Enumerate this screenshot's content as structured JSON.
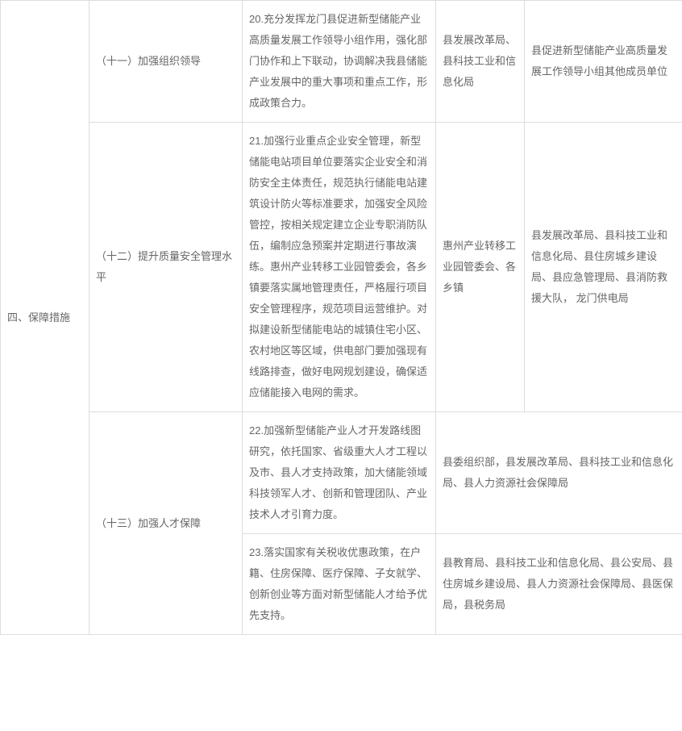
{
  "table": {
    "section": "四、保障措施",
    "rows": [
      {
        "sub": "（十一）加强组织领导",
        "task": "20.充分发挥龙门县促进新型储能产业高质量发展工作领导小组作用，强化部门协作和上下联动，协调解决我县储能产业发展中的重大事项和重点工作，形成政策合力。",
        "lead": "县发展改革局、县科技工业和信息化局",
        "coop": "县促进新型储能产业高质量发展工作领导小组其他成员单位"
      },
      {
        "sub": "（十二）提升质量安全管理水平",
        "task": "21.加强行业重点企业安全管理，新型储能电站项目单位要落实企业安全和消防安全主体责任，规范执行储能电站建筑设计防火等标准要求，加强安全风险管控，按相关规定建立企业专职消防队伍，编制应急预案并定期进行事故演练。惠州产业转移工业园管委会，各乡镇要落实属地管理责任，严格履行项目安全管理程序，规范项目运营维护。对拟建设新型储能电站的城镇住宅小区、农村地区等区域，供电部门要加强现有线路排查，做好电网规划建设，确保适应储能接入电网的需求。",
        "lead": "惠州产业转移工业园管委会、各乡镇",
        "coop": "县发展改革局、县科技工业和信息化局、县住房城乡建设局、县应急管理局、县消防救援大队， 龙门供电局"
      },
      {
        "sub": "（十三）加强人才保障",
        "task": "22.加强新型储能产业人才开发路线图研究，依托国家、省级重大人才工程以及市、县人才支持政策，加大储能领域科技领军人才、创新和管理团队、产业技术人才引育力度。",
        "merged": "县委组织部，县发展改革局、县科技工业和信息化局、县人力资源社会保障局"
      },
      {
        "task": "23.落实国家有关税收优惠政策，在户籍、住房保障、医疗保障、子女就学、创新创业等方面对新型储能人才给予优先支持。",
        "merged": "县教育局、县科技工业和信息化局、县公安局、县住房城乡建设局、县人力资源社会保障局、县医保局，县税务局"
      }
    ]
  },
  "style": {
    "border_color": "#dddddd",
    "text_color": "#666666",
    "background": "#ffffff",
    "font_size": 13
  }
}
